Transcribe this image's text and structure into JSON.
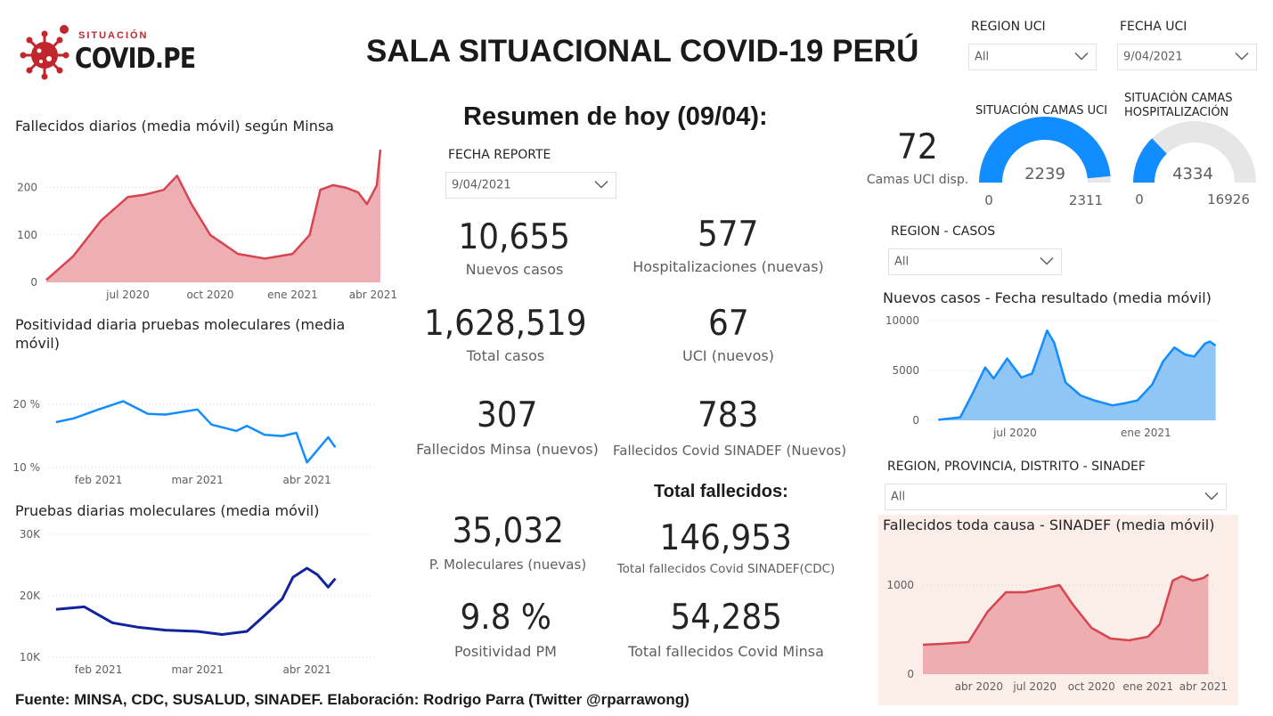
{
  "header": {
    "logo_sub": "SITUACIÓN",
    "logo_main": "COVID.PE",
    "title": "SALA SITUACIONAL COVID-19 PERÚ"
  },
  "filters": {
    "region_uci": {
      "label": "REGION UCI",
      "value": "All"
    },
    "fecha_uci": {
      "label": "FECHA UCI",
      "value": "9/04/2021"
    },
    "fecha_reporte": {
      "label": "FECHA REPORTE",
      "value": "9/04/2021"
    },
    "region_casos": {
      "label": "REGION - CASOS",
      "value": "All"
    },
    "region_sinadef": {
      "label": "REGION, PROVINCIA, DISTRITO - SINADEF",
      "value": "All"
    }
  },
  "summary": {
    "title": "Resumen de hoy (09/04):",
    "total_fallecidos_head": "Total fallecidos:",
    "kpis": {
      "nuevos_casos": {
        "value": "10,655",
        "label": "Nuevos casos"
      },
      "hospitalizaciones": {
        "value": "577",
        "label": "Hospitalizaciones (nuevas)"
      },
      "total_casos": {
        "value": "1,628,519",
        "label": "Total casos"
      },
      "uci_nuevos": {
        "value": "67",
        "label": "UCI (nuevos)"
      },
      "fallecidos_minsa": {
        "value": "307",
        "label": "Fallecidos Minsa (nuevos)"
      },
      "fallecidos_sinadef": {
        "value": "783",
        "label": "Fallecidos Covid SINADEF (Nuevos)"
      },
      "p_moleculares": {
        "value": "35,032",
        "label": "P. Moleculares (nuevas)"
      },
      "total_fallecidos_sinadef": {
        "value": "146,953",
        "label": "Total fallecidos Covid SINADEF(CDC)"
      },
      "positividad_pm": {
        "value": "9.8 %",
        "label": "Positividad PM"
      },
      "total_fallecidos_minsa": {
        "value": "54,285",
        "label": "Total fallecidos Covid Minsa"
      }
    }
  },
  "uci": {
    "camas_disp_value": "72",
    "camas_disp_label": "Camas UCI disp.",
    "gauge_uci": {
      "title": "SITUACIÓN CAMAS UCI",
      "value": 2239,
      "value_label": "2239",
      "min_label": "0",
      "max": 2311,
      "max_label": "2311",
      "color": "#118dff"
    },
    "gauge_hosp": {
      "title_line1": "SITUACIÒN CAMAS",
      "title_line2": "HOSPITALIZACIÓN",
      "value": 4334,
      "value_label": "4334",
      "min_label": "0",
      "max": 16926,
      "max_label": "16926",
      "color": "#118dff"
    }
  },
  "colors": {
    "red_line": "#d64550",
    "red_fill": "#eaa1a7",
    "blue_line": "#118dff",
    "blue_fill": "#7cbcf5",
    "navy_line": "#12239e",
    "sinadef_bg": "#fbeee9"
  },
  "footer": {
    "text": "Fuente: MINSA, CDC, SUSALUD, SINADEF. Elaboración: Rodrigo Parra (Twitter @rparrawong)"
  },
  "chart_data": [
    {
      "id": "fallecidos_minsa",
      "type": "area",
      "title": "Fallecidos diarios (media móvil) según Minsa",
      "x": [
        "2020-04-01",
        "2020-05-01",
        "2020-06-01",
        "2020-07-01",
        "2020-07-20",
        "2020-08-10",
        "2020-08-25",
        "2020-09-10",
        "2020-10-01",
        "2020-11-01",
        "2020-12-01",
        "2021-01-01",
        "2021-01-20",
        "2021-02-01",
        "2021-02-15",
        "2021-03-01",
        "2021-03-15",
        "2021-03-25",
        "2021-04-01",
        "2021-04-05",
        "2021-04-09"
      ],
      "y": [
        5,
        55,
        130,
        180,
        185,
        195,
        225,
        165,
        100,
        60,
        50,
        60,
        100,
        195,
        205,
        200,
        190,
        165,
        190,
        205,
        280
      ],
      "xticks": [
        "jul 2020",
        "oct 2020",
        "ene 2021",
        "abr 2021"
      ],
      "yticks": [
        "0",
        "100",
        "200"
      ],
      "ylim": [
        0,
        280
      ]
    },
    {
      "id": "positividad",
      "type": "line",
      "title": "Positividad diaria pruebas moleculares (media móvil)",
      "x": [
        "2021-01-20",
        "2021-01-25",
        "2021-02-01",
        "2021-02-08",
        "2021-02-15",
        "2021-02-20",
        "2021-03-01",
        "2021-03-05",
        "2021-03-12",
        "2021-03-15",
        "2021-03-20",
        "2021-03-25",
        "2021-03-29",
        "2021-04-01",
        "2021-04-04",
        "2021-04-07",
        "2021-04-09"
      ],
      "y": [
        17.2,
        17.8,
        19.2,
        20.5,
        18.5,
        18.4,
        19.2,
        16.8,
        15.8,
        16.6,
        15.2,
        15.0,
        15.5,
        10.8,
        12.8,
        14.8,
        13.2
      ],
      "xticks": [
        "feb 2021",
        "mar 2021",
        "abr 2021"
      ],
      "yticks": [
        "10 %",
        "20 %"
      ],
      "ylim": [
        10,
        22
      ]
    },
    {
      "id": "pruebas_moleculares",
      "type": "line",
      "title": "Pruebas diarias moleculares (media móvil)",
      "x": [
        "2021-01-20",
        "2021-01-28",
        "2021-02-05",
        "2021-02-12",
        "2021-02-20",
        "2021-03-01",
        "2021-03-08",
        "2021-03-15",
        "2021-03-20",
        "2021-03-25",
        "2021-03-28",
        "2021-04-01",
        "2021-04-04",
        "2021-04-07",
        "2021-04-09"
      ],
      "y": [
        17800,
        18200,
        15600,
        14900,
        14400,
        14200,
        13700,
        14200,
        16800,
        19500,
        23000,
        24500,
        23400,
        21400,
        22800
      ],
      "xticks": [
        "feb 2021",
        "mar 2021",
        "abr 2021"
      ],
      "yticks": [
        "10K",
        "20K",
        "30K"
      ],
      "ylim": [
        10000,
        30000
      ]
    },
    {
      "id": "nuevos_casos",
      "type": "area",
      "title": "Nuevos casos - Fecha resultado (media móvil)",
      "x": [
        "2020-03-15",
        "2020-04-15",
        "2020-05-01",
        "2020-05-20",
        "2020-06-01",
        "2020-06-20",
        "2020-07-10",
        "2020-07-25",
        "2020-08-15",
        "2020-08-25",
        "2020-09-10",
        "2020-10-01",
        "2020-10-20",
        "2020-11-15",
        "2020-12-01",
        "2020-12-20",
        "2021-01-10",
        "2021-01-25",
        "2021-02-10",
        "2021-02-25",
        "2021-03-10",
        "2021-03-25",
        "2021-04-01",
        "2021-04-09"
      ],
      "y": [
        50,
        300,
        2500,
        5300,
        4200,
        6200,
        4300,
        4700,
        9000,
        7800,
        3800,
        2500,
        2000,
        1500,
        1700,
        2000,
        3600,
        5900,
        7300,
        6600,
        6400,
        7700,
        7900,
        7500
      ],
      "xticks": [
        "jul 2020",
        "ene 2021"
      ],
      "yticks": [
        "0",
        "5000",
        "10000"
      ],
      "ylim": [
        0,
        10000
      ]
    },
    {
      "id": "sinadef",
      "type": "area",
      "title": "Fallecidos toda causa - SINADEF (media móvil)",
      "x": [
        "2020-01-01",
        "2020-02-01",
        "2020-03-15",
        "2020-04-15",
        "2020-05-15",
        "2020-06-15",
        "2020-07-15",
        "2020-08-10",
        "2020-09-01",
        "2020-10-01",
        "2020-11-01",
        "2020-12-01",
        "2021-01-01",
        "2021-01-20",
        "2021-02-10",
        "2021-02-25",
        "2021-03-15",
        "2021-04-01",
        "2021-04-09"
      ],
      "y": [
        330,
        340,
        360,
        700,
        920,
        920,
        960,
        1000,
        780,
        520,
        400,
        380,
        420,
        560,
        1050,
        1100,
        1050,
        1080,
        1120
      ],
      "xticks": [
        "abr 2020",
        "jul 2020",
        "oct 2020",
        "ene 2021",
        "abr 2021"
      ],
      "yticks": [
        "0",
        "1000"
      ],
      "ylim": [
        0,
        1200
      ]
    }
  ]
}
